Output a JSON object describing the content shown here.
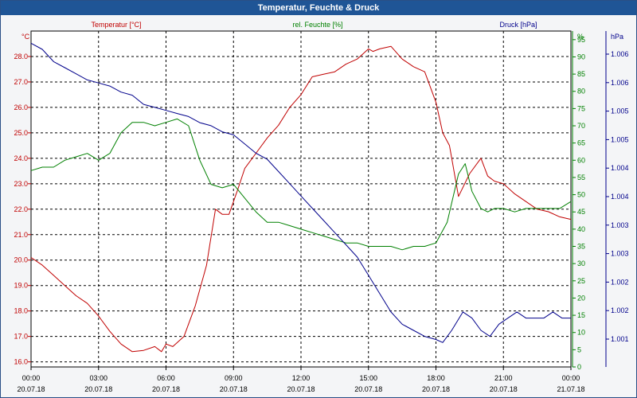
{
  "window": {
    "title": "Temperatur, Feuchte & Druck"
  },
  "chart_data": {
    "type": "line",
    "title": "Temperatur, Feuchte & Druck",
    "grid": true,
    "x_ticks": [
      {
        "t": "00:00",
        "d": "20.07.18"
      },
      {
        "t": "03:00",
        "d": "20.07.18"
      },
      {
        "t": "06:00",
        "d": "20.07.18"
      },
      {
        "t": "09:00",
        "d": "20.07.18"
      },
      {
        "t": "12:00",
        "d": "20.07.18"
      },
      {
        "t": "15:00",
        "d": "20.07.18"
      },
      {
        "t": "18:00",
        "d": "20.07.18"
      },
      {
        "t": "21:00",
        "d": "20.07.18"
      },
      {
        "t": "00:00",
        "d": "21.07.18"
      }
    ],
    "x_range_hours": [
      0,
      24
    ],
    "axes": {
      "left": {
        "unit": "°C",
        "label": "Temperatur [°C]",
        "color": "#c00000",
        "range": [
          15.8,
          29.0
        ],
        "ticks": [
          "16.0",
          "17.0",
          "18.0",
          "19.0",
          "20.0",
          "21.0",
          "22.0",
          "23.0",
          "24.0",
          "25.0",
          "26.0",
          "27.0",
          "28.0"
        ]
      },
      "mid": {
        "unit": "%",
        "label": "rel. Feuchte [%]",
        "color": "#008000",
        "range": [
          0,
          97.5
        ],
        "ticks": [
          "0",
          "5",
          "10",
          "15",
          "20",
          "25",
          "30",
          "35",
          "40",
          "45",
          "50",
          "55",
          "60",
          "65",
          "70",
          "75",
          "80",
          "85",
          "90",
          "95"
        ]
      },
      "right": {
        "unit": "hPa",
        "label": "Druck [hPa]",
        "color": "#00008b",
        "range": [
          1000.8,
          1006.3
        ],
        "ticks": [
          "1.001",
          "1.002",
          "1.002",
          "1.003",
          "1.003",
          "1.004",
          "1.004",
          "1.005",
          "1.005",
          "1.006",
          "1.006"
        ]
      }
    },
    "series": [
      {
        "name": "Temperatur [°C]",
        "axis": "left",
        "color": "#c00000",
        "x": [
          0,
          0.5,
          1,
          1.5,
          2,
          2.5,
          3,
          3.5,
          4,
          4.5,
          5,
          5.5,
          5.8,
          6,
          6.3,
          6.8,
          7.3,
          7.8,
          8.2,
          8.5,
          8.8,
          9.2,
          9.5,
          10,
          10.5,
          11,
          11.5,
          12,
          12.5,
          13,
          13.5,
          14,
          14.5,
          15,
          15.2,
          15.5,
          16,
          16.5,
          17,
          17.5,
          18,
          18.3,
          18.6,
          19,
          19.5,
          20,
          20.3,
          20.6,
          21,
          21.5,
          22,
          22.5,
          23,
          23.5,
          24
        ],
        "y": [
          20.1,
          19.8,
          19.4,
          19.0,
          18.6,
          18.3,
          17.8,
          17.2,
          16.7,
          16.4,
          16.45,
          16.6,
          16.4,
          16.7,
          16.6,
          17.0,
          18.2,
          19.8,
          22.0,
          21.8,
          21.8,
          22.8,
          23.6,
          24.2,
          24.8,
          25.3,
          26.0,
          26.5,
          27.2,
          27.3,
          27.4,
          27.7,
          27.9,
          28.3,
          28.2,
          28.3,
          28.4,
          27.9,
          27.6,
          27.4,
          26.2,
          25.0,
          24.5,
          22.5,
          23.4,
          24.0,
          23.3,
          23.1,
          23.0,
          22.6,
          22.3,
          22.0,
          21.9,
          21.7,
          21.6
        ]
      },
      {
        "name": "rel. Feuchte [%]",
        "axis": "mid",
        "color": "#008000",
        "x": [
          0,
          0.5,
          1,
          1.5,
          2,
          2.5,
          3,
          3.5,
          4,
          4.5,
          5,
          5.5,
          6,
          6.5,
          7,
          7.5,
          8,
          8.5,
          9,
          9.5,
          10,
          10.5,
          11,
          11.5,
          12,
          12.5,
          13,
          13.5,
          14,
          14.5,
          15,
          15.5,
          16,
          16.5,
          17,
          17.5,
          18,
          18.5,
          19,
          19.3,
          19.6,
          20,
          20.3,
          20.6,
          21,
          21.5,
          22,
          22.5,
          23,
          23.5,
          24
        ],
        "y": [
          57,
          58,
          58,
          60,
          61,
          62,
          60,
          62,
          68,
          71,
          71,
          70,
          71,
          72,
          70,
          60,
          53,
          52,
          53,
          49,
          45,
          42,
          42,
          41,
          40,
          39,
          38,
          37,
          36,
          36,
          35,
          35,
          35,
          34,
          35,
          35,
          36,
          42,
          56,
          59,
          51,
          46,
          45,
          46,
          46,
          45,
          46,
          46,
          46,
          46,
          48
        ]
      },
      {
        "name": "Druck [hPa]",
        "axis": "right",
        "color": "#00008b",
        "x": [
          0,
          0.5,
          1,
          1.5,
          2,
          2.5,
          3,
          3.5,
          4,
          4.5,
          5,
          5.5,
          6,
          6.5,
          7,
          7.5,
          8,
          8.5,
          9,
          9.5,
          10,
          10.5,
          11,
          11.5,
          12,
          12.5,
          13,
          13.5,
          14,
          14.5,
          15,
          15.5,
          16,
          16.5,
          17,
          17.5,
          18,
          18.3,
          18.7,
          19.2,
          19.6,
          20,
          20.4,
          20.8,
          21.2,
          21.6,
          22,
          22.4,
          22.8,
          23.2,
          23.6,
          24
        ],
        "y": [
          1006.1,
          1006.0,
          1005.8,
          1005.7,
          1005.6,
          1005.5,
          1005.45,
          1005.4,
          1005.3,
          1005.25,
          1005.1,
          1005.05,
          1005.0,
          1004.95,
          1004.9,
          1004.8,
          1004.75,
          1004.65,
          1004.6,
          1004.45,
          1004.3,
          1004.2,
          1004.0,
          1003.8,
          1003.6,
          1003.4,
          1003.2,
          1003.0,
          1002.8,
          1002.6,
          1002.3,
          1002.0,
          1001.7,
          1001.5,
          1001.4,
          1001.3,
          1001.25,
          1001.2,
          1001.4,
          1001.7,
          1001.6,
          1001.4,
          1001.3,
          1001.5,
          1001.6,
          1001.7,
          1001.6,
          1001.6,
          1001.6,
          1001.7,
          1001.6,
          1001.6
        ]
      }
    ]
  }
}
